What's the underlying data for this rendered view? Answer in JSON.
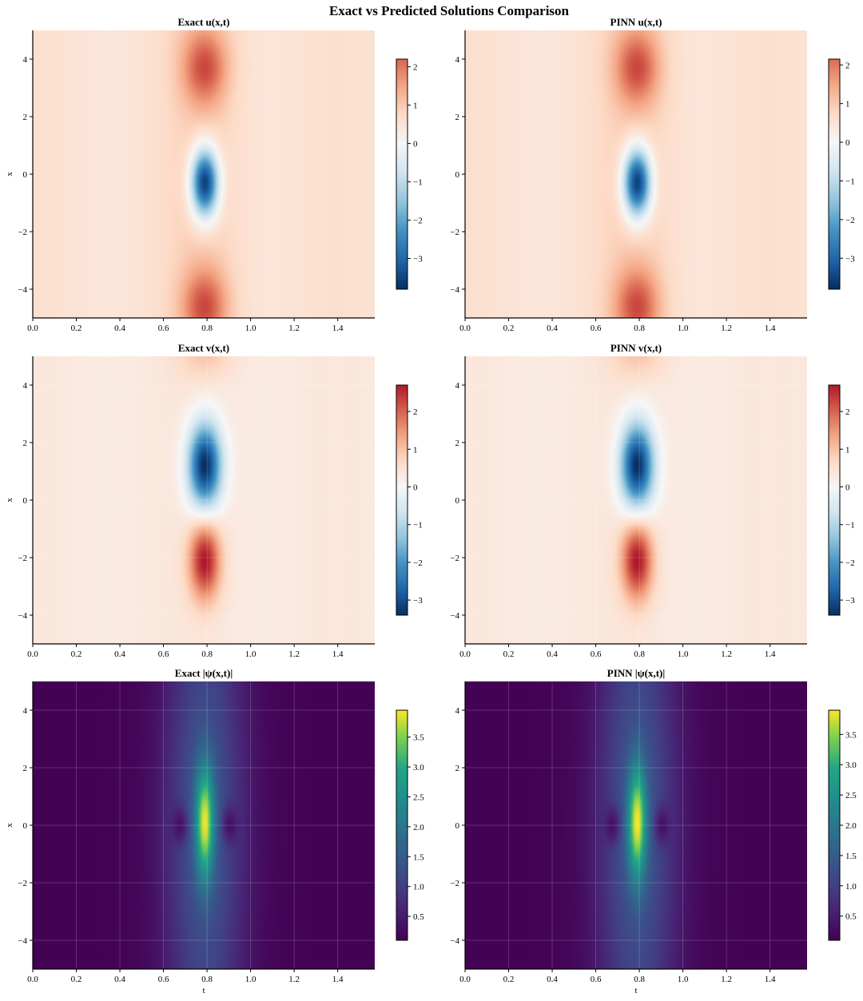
{
  "figure": {
    "suptitle": "Exact vs Predicted Solutions Comparison"
  },
  "chart_data": [
    {
      "type": "heatmap",
      "id": "exact-u",
      "title": "Exact u(x,t)",
      "xlabel": "",
      "ylabel": "x",
      "colormap": "RdBu_r",
      "xlim": [
        0,
        1.57
      ],
      "ylim": [
        -5,
        5
      ],
      "xticks": [
        "0.0",
        "0.2",
        "0.4",
        "0.6",
        "0.8",
        "1.0",
        "1.2",
        "1.4"
      ],
      "yticks": [
        "−4",
        "−2",
        "0",
        "2",
        "4"
      ],
      "colorbar": {
        "range": [
          -3.8,
          2.2
        ],
        "ticks": [
          "2",
          "1",
          "0",
          "−1",
          "−2",
          "−3"
        ]
      },
      "grid": false,
      "features": [
        {
          "kind": "peak",
          "t": 0.79,
          "x": 3.8,
          "value": 2.2
        },
        {
          "kind": "peak",
          "t": 0.79,
          "x": -4.5,
          "value": 2.2
        },
        {
          "kind": "trough",
          "t": 0.79,
          "x": -0.3,
          "value": -3.8
        }
      ]
    },
    {
      "type": "heatmap",
      "id": "pinn-u",
      "title": "PINN u(x,t)",
      "xlabel": "",
      "ylabel": "",
      "colormap": "RdBu_r",
      "xlim": [
        0,
        1.57
      ],
      "ylim": [
        -5,
        5
      ],
      "xticks": [
        "0.0",
        "0.2",
        "0.4",
        "0.6",
        "0.8",
        "1.0",
        "1.2",
        "1.4"
      ],
      "yticks": [
        "−4",
        "−2",
        "0",
        "2",
        "4"
      ],
      "colorbar": {
        "range": [
          -3.8,
          2.15
        ],
        "ticks": [
          "2",
          "1",
          "0",
          "−1",
          "−2",
          "−3"
        ]
      },
      "grid": false,
      "features": [
        {
          "kind": "peak",
          "t": 0.79,
          "x": 3.8,
          "value": 2.1
        },
        {
          "kind": "peak",
          "t": 0.79,
          "x": -4.5,
          "value": 2.1
        },
        {
          "kind": "trough",
          "t": 0.79,
          "x": -0.3,
          "value": -3.8
        }
      ]
    },
    {
      "type": "heatmap",
      "id": "exact-v",
      "title": "Exact v(x,t)",
      "xlabel": "",
      "ylabel": "x",
      "colormap": "RdBu_r",
      "xlim": [
        0,
        1.57
      ],
      "ylim": [
        -5,
        5
      ],
      "xticks": [
        "0.0",
        "0.2",
        "0.4",
        "0.6",
        "0.8",
        "1.0",
        "1.2",
        "1.4"
      ],
      "yticks": [
        "−4",
        "−2",
        "0",
        "2",
        "4"
      ],
      "colorbar": {
        "range": [
          -3.4,
          2.7
        ],
        "ticks": [
          "2",
          "1",
          "0",
          "−1",
          "−2",
          "−3"
        ]
      },
      "grid": true,
      "features": [
        {
          "kind": "trough",
          "t": 0.79,
          "x": 1.2,
          "value": -3.4
        },
        {
          "kind": "peak",
          "t": 0.79,
          "x": -2.1,
          "value": 2.7
        },
        {
          "kind": "peak",
          "t": 0.79,
          "x": 5.0,
          "value": 0.8
        }
      ]
    },
    {
      "type": "heatmap",
      "id": "pinn-v",
      "title": "PINN v(x,t)",
      "xlabel": "",
      "ylabel": "",
      "colormap": "RdBu_r",
      "xlim": [
        0,
        1.57
      ],
      "ylim": [
        -5,
        5
      ],
      "xticks": [
        "0.0",
        "0.2",
        "0.4",
        "0.6",
        "0.8",
        "1.0",
        "1.2",
        "1.4"
      ],
      "yticks": [
        "−4",
        "−2",
        "0",
        "2",
        "4"
      ],
      "colorbar": {
        "range": [
          -3.4,
          2.7
        ],
        "ticks": [
          "2",
          "1",
          "0",
          "−1",
          "−2",
          "−3"
        ]
      },
      "grid": true,
      "features": [
        {
          "kind": "trough",
          "t": 0.79,
          "x": 1.2,
          "value": -3.4
        },
        {
          "kind": "peak",
          "t": 0.79,
          "x": -2.1,
          "value": 2.7
        },
        {
          "kind": "peak",
          "t": 0.79,
          "x": 5.0,
          "value": 0.8
        }
      ]
    },
    {
      "type": "heatmap",
      "id": "exact-psi",
      "title": "Exact |ψ(x,t)|",
      "xlabel": "t",
      "ylabel": "x",
      "colormap": "viridis",
      "xlim": [
        0,
        1.57
      ],
      "ylim": [
        -5,
        5
      ],
      "xticks": [
        "0.0",
        "0.2",
        "0.4",
        "0.6",
        "0.8",
        "1.0",
        "1.2",
        "1.4"
      ],
      "yticks": [
        "−4",
        "−2",
        "0",
        "2",
        "4"
      ],
      "colorbar": {
        "range": [
          0.1,
          3.95
        ],
        "ticks": [
          "3.5",
          "3.0",
          "2.5",
          "2.0",
          "1.5",
          "1.0",
          "0.5"
        ]
      },
      "grid": true,
      "features": [
        {
          "kind": "peak",
          "t": 0.79,
          "x": 0.1,
          "value": 3.95
        },
        {
          "kind": "dip",
          "t": 0.68,
          "x": 0.0,
          "value": 0.3
        },
        {
          "kind": "dip",
          "t": 0.9,
          "x": 0.0,
          "value": 0.3
        }
      ]
    },
    {
      "type": "heatmap",
      "id": "pinn-psi",
      "title": "PINN |ψ(x,t)|",
      "xlabel": "t",
      "ylabel": "",
      "colormap": "viridis",
      "xlim": [
        0,
        1.57
      ],
      "ylim": [
        -5,
        5
      ],
      "xticks": [
        "0.0",
        "0.2",
        "0.4",
        "0.6",
        "0.8",
        "1.0",
        "1.2",
        "1.4"
      ],
      "yticks": [
        "−4",
        "−2",
        "0",
        "2",
        "4"
      ],
      "colorbar": {
        "range": [
          0.1,
          3.9
        ],
        "ticks": [
          "3.5",
          "3.0",
          "2.5",
          "2.0",
          "1.5",
          "1.0",
          "0.5"
        ]
      },
      "grid": true,
      "features": [
        {
          "kind": "peak",
          "t": 0.79,
          "x": 0.1,
          "value": 3.9
        },
        {
          "kind": "dip",
          "t": 0.68,
          "x": 0.0,
          "value": 0.3
        },
        {
          "kind": "dip",
          "t": 0.9,
          "x": 0.0,
          "value": 0.3
        }
      ]
    }
  ]
}
